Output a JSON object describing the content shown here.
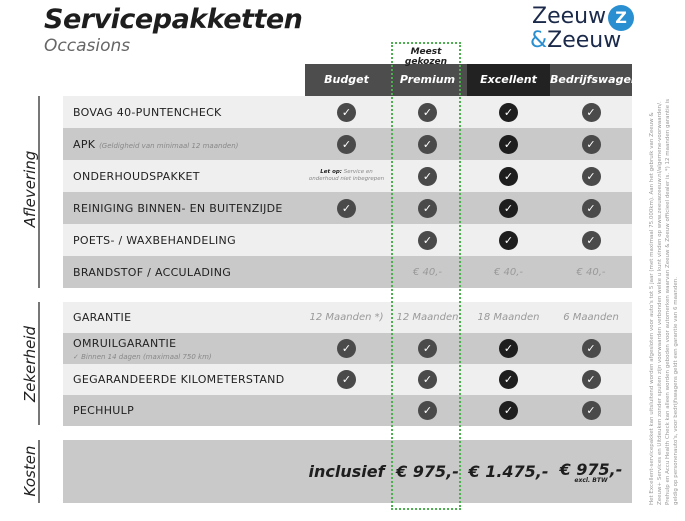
{
  "header": {
    "title": "Servicepakketten",
    "subtitle": "Occasions",
    "logo_text": "Zeeuw & Zeeuw",
    "logo_line1": "Zeeuw",
    "logo_amp": "&",
    "logo_line2": "Zeeuw",
    "logo_badge": "Z"
  },
  "highlight": {
    "label": "Meest gekozen",
    "color": "#4caf50"
  },
  "columns": [
    {
      "label": "Budget",
      "color": "#4d4d4d"
    },
    {
      "label": "Premium",
      "color": "#4d4d4d"
    },
    {
      "label": "Excellent",
      "color": "#222222"
    },
    {
      "label": "Bedrijfswagens",
      "color": "#4d4d4d"
    }
  ],
  "sections": {
    "aflevering": "Aflevering",
    "zekerheid": "Zekerheid",
    "kosten": "Kosten"
  },
  "aflevering_rows": [
    {
      "label": "BOVAG 40-PUNTENCHECK",
      "cells": [
        "check",
        "check",
        "check",
        "check"
      ]
    },
    {
      "label": "APK",
      "note": "(Geldigheid van minimaal 12 maanden)",
      "cells": [
        "check",
        "check",
        "check",
        "check"
      ]
    },
    {
      "label": "ONDERHOUDSPAKKET",
      "cells": [
        "note",
        "check",
        "check",
        "check"
      ],
      "budget_note_bold": "Let op:",
      "budget_note": "Service en onderhoud niet inbegrepen"
    },
    {
      "label": "REINIGING BINNEN- EN BUITENZIJDE",
      "cells": [
        "check",
        "check",
        "check",
        "check"
      ]
    },
    {
      "label": "POETS- / WAXBEHANDELING",
      "cells": [
        "",
        "check",
        "check",
        "check"
      ]
    },
    {
      "label": "BRANDSTOF / ACCULADING",
      "cells": [
        "",
        "€ 40,-",
        "€ 40,-",
        "€ 40,-"
      ]
    }
  ],
  "zekerheid_rows": [
    {
      "label": "GARANTIE",
      "cells": [
        "12 Maanden *)",
        "12 Maanden",
        "18 Maanden",
        "6 Maanden"
      ]
    },
    {
      "label": "OMRUILGARANTIE",
      "sub": "✓  Binnen 14 dagen (maximaal 750 km)",
      "cells": [
        "check",
        "check",
        "check",
        "check"
      ]
    },
    {
      "label": "GEGARANDEERDE KILOMETERSTAND",
      "cells": [
        "check",
        "check",
        "check",
        "check"
      ]
    },
    {
      "label": "PECHHULP",
      "cells": [
        "",
        "check",
        "check",
        "check"
      ]
    }
  ],
  "kosten": {
    "prices": [
      "inclusief",
      "€ 975,-",
      "€ 1.475,-",
      "€ 975,-"
    ],
    "excl": "excl. BTW"
  },
  "footnote": "Het Excellent-servicepakket kan uitsluitend worden afgesloten voor auto's tot 5 jaar (met maximaal 75.000km). Aan het gebruik van Zeeuw & Zeeuw+ Services en Uitdeuken zonder spuiten zijn voorwaarden verbonden welke u kunt vinden op www.zeeuwzeeuw.nl/algemene-voorwaarden/. Prehulp en Accu Health Check kan alleen worden geboden voor automerken waarvan Zeeuw & Zeeuw officieel dealer is. *) 12 maanden garantie is geldig op personenauto's, voor bedrijfswagens geldt een garantie van 6 maanden."
}
